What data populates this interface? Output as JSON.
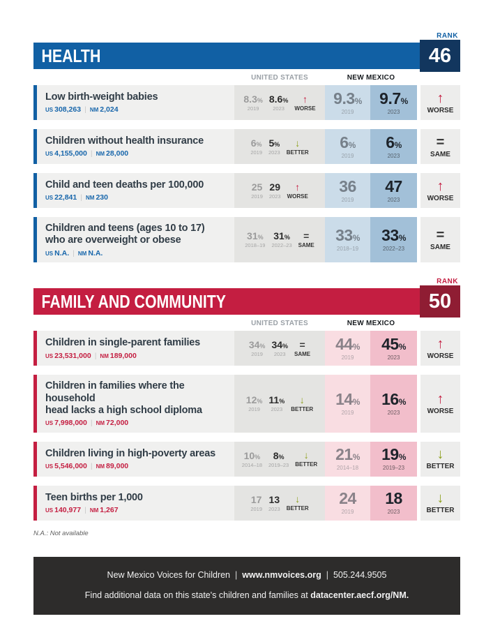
{
  "page": {
    "rank_label": "RANK",
    "col_us": "UNITED STATES",
    "col_nm": "NEW MEXICO",
    "us_prefix": "US",
    "nm_prefix": "NM",
    "divider": "|",
    "note": "N.A.: Not available"
  },
  "trend": {
    "worse": {
      "icon": "↑",
      "label": "WORSE"
    },
    "better": {
      "icon": "↓",
      "label": "BETTER"
    },
    "same": {
      "icon": "=",
      "label": "SAME"
    }
  },
  "colors": {
    "health_accent": "#1160a4",
    "health_rank_box": "#12365e",
    "family_accent": "#c41e41",
    "family_rank_box": "#8f1d33",
    "worse_red": "#c41e41",
    "better_green": "#8da01e",
    "nm_2019_blue": "#cbdce9",
    "nm_2023_blue": "#a2c0d8",
    "nm_2019_pink": "#f9dde2",
    "nm_2023_pink": "#f2becb"
  },
  "sections": [
    {
      "title": "HEALTH",
      "rank": "46",
      "rows": [
        {
          "title": "Low birth-weight babies",
          "title2": "",
          "us_count": "308,263",
          "nm_count": "2,024",
          "us1": {
            "num": "8.3",
            "unit": "%",
            "year": "2019"
          },
          "us2": {
            "num": "8.6",
            "unit": "%",
            "year": "2023"
          },
          "nm1": {
            "num": "9.3",
            "unit": "%",
            "year": "2019"
          },
          "nm2": {
            "num": "9.7",
            "unit": "%",
            "year": "2023"
          },
          "us_trend": "worse",
          "overall_trend": "worse"
        },
        {
          "title": "Children without health insurance",
          "title2": "",
          "us_count": "4,155,000",
          "nm_count": "28,000",
          "us1": {
            "num": "6",
            "unit": "%",
            "year": "2019"
          },
          "us2": {
            "num": "5",
            "unit": "%",
            "year": "2023"
          },
          "nm1": {
            "num": "6",
            "unit": "%",
            "year": "2019"
          },
          "nm2": {
            "num": "6",
            "unit": "%",
            "year": "2023"
          },
          "us_trend": "better",
          "overall_trend": "same"
        },
        {
          "title": "Child and teen deaths per 100,000",
          "title2": "",
          "us_count": "22,841",
          "nm_count": "230",
          "us1": {
            "num": "25",
            "unit": "",
            "year": "2019"
          },
          "us2": {
            "num": "29",
            "unit": "",
            "year": "2023"
          },
          "nm1": {
            "num": "36",
            "unit": "",
            "year": "2019"
          },
          "nm2": {
            "num": "47",
            "unit": "",
            "year": "2023"
          },
          "us_trend": "worse",
          "overall_trend": "worse"
        },
        {
          "title": "Children and teens (ages 10 to 17)",
          "title2": "who are overweight or obese",
          "us_count": "N.A.",
          "nm_count": "N.A.",
          "us1": {
            "num": "31",
            "unit": "%",
            "year": "2018–19"
          },
          "us2": {
            "num": "31",
            "unit": "%",
            "year": "2022–23"
          },
          "nm1": {
            "num": "33",
            "unit": "%",
            "year": "2018–19"
          },
          "nm2": {
            "num": "33",
            "unit": "%",
            "year": "2022–23"
          },
          "us_trend": "same",
          "overall_trend": "same"
        }
      ]
    },
    {
      "title": "FAMILY AND COMMUNITY",
      "rank": "50",
      "rows": [
        {
          "title": "Children in single-parent families",
          "title2": "",
          "us_count": "23,531,000",
          "nm_count": "189,000",
          "us1": {
            "num": "34",
            "unit": "%",
            "year": "2019"
          },
          "us2": {
            "num": "34",
            "unit": "%",
            "year": "2023"
          },
          "nm1": {
            "num": "44",
            "unit": "%",
            "year": "2019"
          },
          "nm2": {
            "num": "45",
            "unit": "%",
            "year": "2023"
          },
          "us_trend": "same",
          "overall_trend": "worse"
        },
        {
          "title": "Children in families where the household",
          "title2": "head lacks a high school diploma",
          "us_count": "7,998,000",
          "nm_count": "72,000",
          "us1": {
            "num": "12",
            "unit": "%",
            "year": "2019"
          },
          "us2": {
            "num": "11",
            "unit": "%",
            "year": "2023"
          },
          "nm1": {
            "num": "14",
            "unit": "%",
            "year": "2019"
          },
          "nm2": {
            "num": "16",
            "unit": "%",
            "year": "2023"
          },
          "us_trend": "better",
          "overall_trend": "worse"
        },
        {
          "title": "Children living in high-poverty areas",
          "title2": "",
          "us_count": "5,546,000",
          "nm_count": "89,000",
          "us1": {
            "num": "10",
            "unit": "%",
            "year": "2014–18"
          },
          "us2": {
            "num": "8",
            "unit": "%",
            "year": "2019–23"
          },
          "nm1": {
            "num": "21",
            "unit": "%",
            "year": "2014–18"
          },
          "nm2": {
            "num": "19",
            "unit": "%",
            "year": "2019–23"
          },
          "us_trend": "better",
          "overall_trend": "better"
        },
        {
          "title": "Teen births per 1,000",
          "title2": "",
          "us_count": "140,977",
          "nm_count": "1,267",
          "us1": {
            "num": "17",
            "unit": "",
            "year": "2019"
          },
          "us2": {
            "num": "13",
            "unit": "",
            "year": "2023"
          },
          "nm1": {
            "num": "24",
            "unit": "",
            "year": "2019"
          },
          "nm2": {
            "num": "18",
            "unit": "",
            "year": "2023"
          },
          "us_trend": "better",
          "overall_trend": "better"
        }
      ]
    }
  ],
  "footer": {
    "org": "New Mexico Voices for Children",
    "site": "www.nmvoices.org",
    "phone": "505.244.9505",
    "line2_text": "Find additional data on this state's children and families at",
    "line2_link": "datacenter.aecf.org/NM."
  }
}
